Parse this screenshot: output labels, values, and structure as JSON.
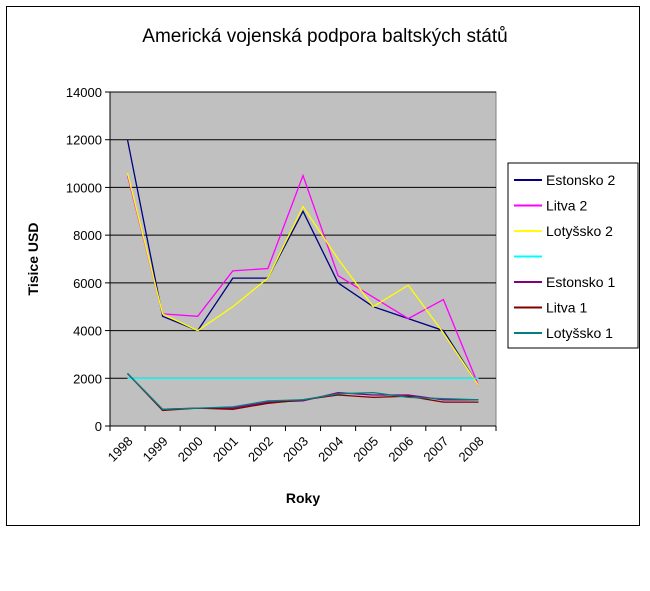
{
  "chart_data": {
    "type": "line",
    "title": "Americká vojenská podpora baltských států",
    "xlabel": "Roky",
    "ylabel": "Tisice USD",
    "categories": [
      "1998",
      "1999",
      "2000",
      "2001",
      "2002",
      "2003",
      "2004",
      "2005",
      "2006",
      "2007",
      "2008"
    ],
    "ylim": [
      0,
      14000
    ],
    "yticks": [
      0,
      2000,
      4000,
      6000,
      8000,
      10000,
      12000,
      14000
    ],
    "grid": true,
    "legend_position": "right",
    "plot_background": "#c0c0c0",
    "series": [
      {
        "name": "Estonsko 2",
        "color": "#000080",
        "values": [
          12000,
          4600,
          4000,
          6200,
          6200,
          9000,
          6000,
          5000,
          4500,
          4000,
          1700
        ]
      },
      {
        "name": "Litva 2",
        "color": "#ff00ff",
        "values": [
          10500,
          4700,
          4600,
          6500,
          6600,
          10500,
          6300,
          5400,
          4500,
          5300,
          1700
        ]
      },
      {
        "name": "Lotyšsko 2",
        "color": "#ffff00",
        "values": [
          10600,
          4700,
          4000,
          5000,
          6200,
          9200,
          7000,
          5000,
          5900,
          3900,
          1700
        ]
      },
      {
        "name": "",
        "color": "#00ffff",
        "values": [
          2000,
          2000,
          2000,
          2000,
          2000,
          2000,
          2000,
          2000,
          2000,
          2000,
          2000
        ]
      },
      {
        "name": "Estonsko 1",
        "color": "#800080",
        "values": [
          2200,
          700,
          750,
          750,
          1000,
          1050,
          1400,
          1300,
          1300,
          1100,
          1100
        ]
      },
      {
        "name": "Litva 1",
        "color": "#800000",
        "values": [
          2200,
          650,
          750,
          700,
          950,
          1100,
          1300,
          1200,
          1250,
          1000,
          1000
        ]
      },
      {
        "name": "Lotyšsko 1",
        "color": "#008080",
        "values": [
          2200,
          700,
          750,
          800,
          1050,
          1100,
          1350,
          1400,
          1200,
          1150,
          1100
        ]
      }
    ]
  }
}
